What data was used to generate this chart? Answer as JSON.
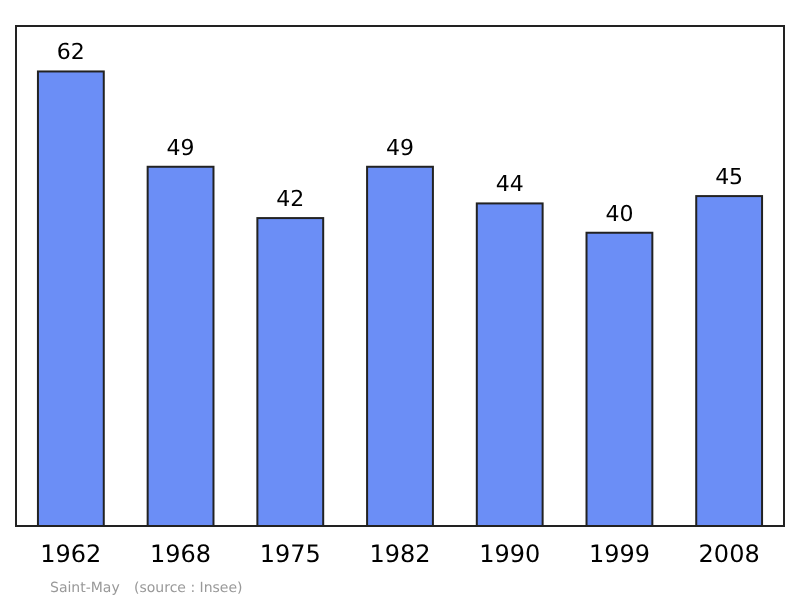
{
  "chart_data": {
    "type": "bar",
    "categories": [
      "1962",
      "1968",
      "1975",
      "1982",
      "1990",
      "1999",
      "2008"
    ],
    "values": [
      62,
      49,
      42,
      49,
      44,
      40,
      45
    ],
    "color": "#6b8ef6",
    "data_labels": true,
    "annotations": [
      "Saint-May",
      "(source : Insee)"
    ]
  }
}
